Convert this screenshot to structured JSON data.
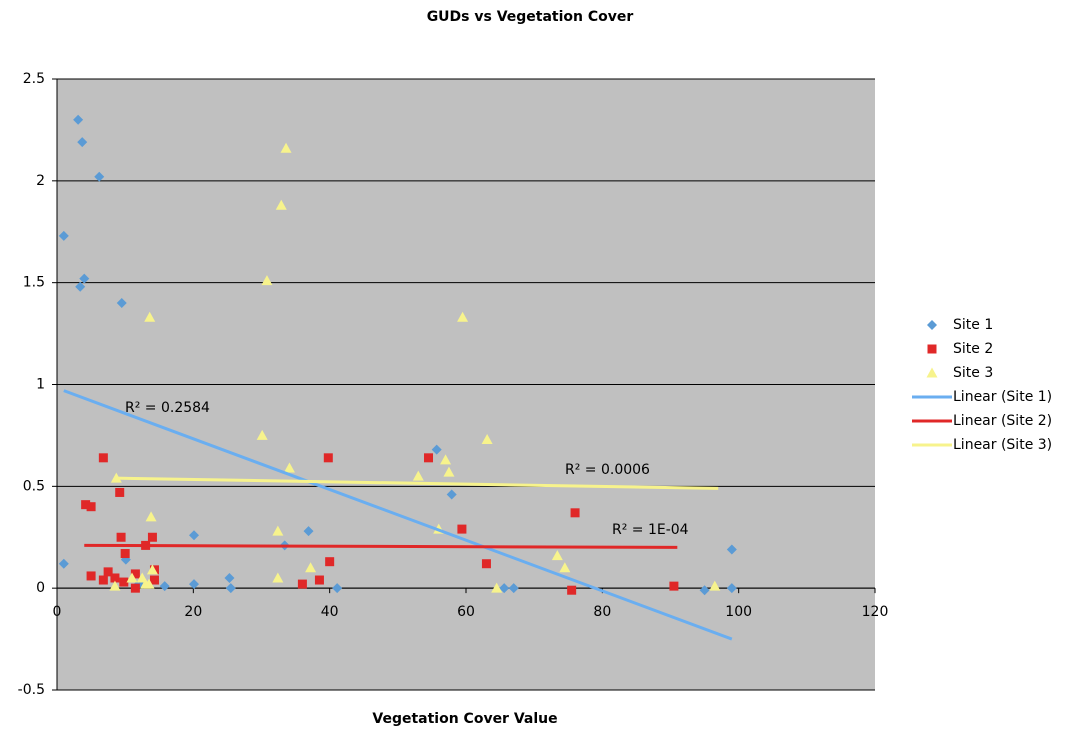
{
  "chart_data": {
    "type": "scatter",
    "title": "GUDs vs Vegetation Cover",
    "x_label": "Vegetation Cover Value",
    "xlim": [
      0,
      120
    ],
    "xticks": [
      0,
      20,
      40,
      60,
      80,
      100,
      120
    ],
    "ylim": [
      -0.5,
      2.5
    ],
    "yticks": [
      -0.5,
      0,
      0.5,
      1,
      1.5,
      2,
      2.5
    ],
    "grid": true,
    "legend": "right",
    "series": [
      {
        "name": "Site 1",
        "color": "#5b9bd5",
        "marker": "diamond",
        "x": [
          1,
          3.1,
          3.7,
          6.2,
          4,
          3.4,
          9.5,
          1,
          10.1,
          11.7,
          15.8,
          20.1,
          20.1,
          25.3,
          25.5,
          33.4,
          36.9,
          41.1,
          55.7,
          57.9,
          65.6,
          67,
          95,
          99,
          99,
          12.5
        ],
        "values": [
          1.73,
          2.3,
          2.19,
          2.02,
          1.52,
          1.48,
          1.4,
          0.12,
          0.14,
          0.01,
          0.01,
          0.26,
          0.02,
          0.05,
          0.0,
          0.21,
          0.28,
          0.0,
          0.68,
          0.46,
          0.0,
          0.0,
          -0.01,
          0.19,
          0.0,
          0.02
        ]
      },
      {
        "name": "Site 2",
        "color": "#e02828",
        "marker": "square",
        "x": [
          4.2,
          5,
          5,
          6.8,
          6.8,
          7.5,
          8.5,
          9.2,
          9.4,
          9.8,
          10,
          11.5,
          11.5,
          13,
          14,
          14.3,
          14.3,
          36,
          38.5,
          39.8,
          40,
          54.5,
          59.4,
          63,
          75.5,
          76,
          90.5
        ],
        "values": [
          0.41,
          0.4,
          0.06,
          0.64,
          0.04,
          0.08,
          0.05,
          0.47,
          0.25,
          0.03,
          0.17,
          0.07,
          0.0,
          0.21,
          0.25,
          0.09,
          0.04,
          0.02,
          0.04,
          0.64,
          0.13,
          0.64,
          0.29,
          0.12,
          -0.01,
          0.37,
          0.01
        ]
      },
      {
        "name": "Site 3",
        "color": "#f7f38c",
        "marker": "triangle",
        "x": [
          8.5,
          8.7,
          11,
          12.5,
          13,
          13.5,
          13.6,
          13.8,
          14,
          30.1,
          30.8,
          32.4,
          32.4,
          32.9,
          33.6,
          34.1,
          37.2,
          53,
          56,
          57,
          57.5,
          59.5,
          63.1,
          64.5,
          73.4,
          74.5,
          96.5
        ],
        "values": [
          0.01,
          0.54,
          0.05,
          0.05,
          0.02,
          0.02,
          1.33,
          0.35,
          0.09,
          0.75,
          1.51,
          0.28,
          0.05,
          1.88,
          2.16,
          0.59,
          0.1,
          0.55,
          0.29,
          0.63,
          0.57,
          1.33,
          0.73,
          0.0,
          0.16,
          0.1,
          0.01
        ]
      }
    ],
    "trendlines": [
      {
        "name": "Linear (Site 1)",
        "color": "#6aaef0",
        "x": [
          1,
          99
        ],
        "values": [
          0.97,
          -0.25
        ],
        "label": "R² = 0.2584"
      },
      {
        "name": "Linear (Site 2)",
        "color": "#e02828",
        "x": [
          4,
          91
        ],
        "values": [
          0.21,
          0.2
        ],
        "label": "R² = 1E-04"
      },
      {
        "name": "Linear (Site 3)",
        "color": "#f7f38c",
        "x": [
          8.5,
          97
        ],
        "values": [
          0.54,
          0.49
        ],
        "label": "R² = 0.0006"
      }
    ]
  }
}
